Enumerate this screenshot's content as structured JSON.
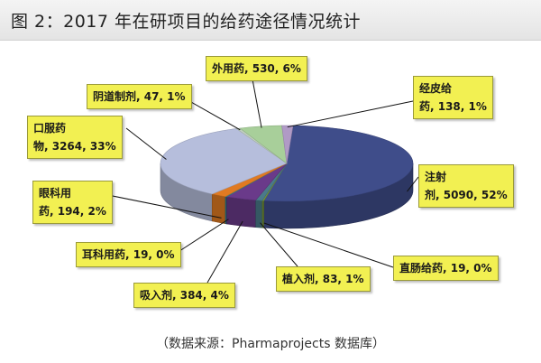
{
  "title": "图 2：2017 年在研项目的给药途径情况统计",
  "source": "（数据来源：Pharmaprojects 数据库）",
  "chart_data": {
    "type": "pie",
    "title": "图 2：2017 年在研项目的给药途径情况统计",
    "three_d": true,
    "legend": "none",
    "slices": [
      {
        "name": "注射剂",
        "value": 5090,
        "percent": "52%",
        "color": "#3f4d8a",
        "label_lines": [
          "注射",
          "剂, 5090, 52%"
        ]
      },
      {
        "name": "直肠给药",
        "value": 19,
        "percent": "0%",
        "color": "#7a9a3a",
        "label_lines": [
          "直肠给药, 19, 0%"
        ]
      },
      {
        "name": "植入剂",
        "value": 83,
        "percent": "1%",
        "color": "#4a7a8a",
        "label_lines": [
          "植入剂, 83, 1%"
        ]
      },
      {
        "name": "吸入剂",
        "value": 384,
        "percent": "4%",
        "color": "#6a3a8a",
        "label_lines": [
          "吸入剂, 384, 4%"
        ]
      },
      {
        "name": "耳科用药",
        "value": 19,
        "percent": "0%",
        "color": "#2a8a9a",
        "label_lines": [
          "耳科用药, 19, 0%"
        ]
      },
      {
        "name": "眼科用药",
        "value": 194,
        "percent": "2%",
        "color": "#e07a22",
        "label_lines": [
          "眼科用",
          "药, 194, 2%"
        ]
      },
      {
        "name": "口服药物",
        "value": 3264,
        "percent": "33%",
        "color": "#b6bedc",
        "label_lines": [
          "口服药",
          "物, 3264, 33%"
        ]
      },
      {
        "name": "阴道制剂",
        "value": 47,
        "percent": "1%",
        "color": "#c0cfc0",
        "label_lines": [
          "阴道制剂, 47, 1%"
        ]
      },
      {
        "name": "外用药",
        "value": 530,
        "percent": "6%",
        "color": "#a8cf9a",
        "label_lines": [
          "外用药, 530, 6%"
        ]
      },
      {
        "name": "经皮给药",
        "value": 138,
        "percent": "1%",
        "color": "#b09ac6",
        "label_lines": [
          "经皮给",
          "药, 138, 1%"
        ]
      }
    ]
  }
}
